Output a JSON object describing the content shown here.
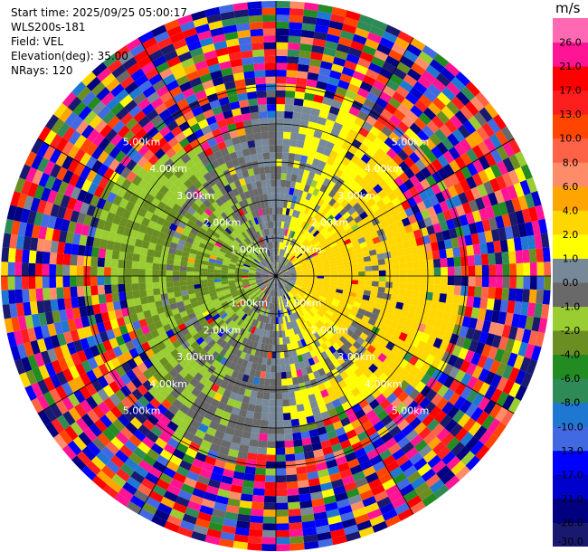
{
  "info": {
    "start_time": "Start time: 2025/09/25 05:00:17",
    "instrument": "WLS200s-181",
    "field": "Field: VEL",
    "elevation": "Elevation(deg): 35.00",
    "nrays": "NRays: 120"
  },
  "colorbar": {
    "unit": "m/s",
    "boundaries": [
      -30.0,
      -26.0,
      -21.0,
      -17.0,
      -13.0,
      -10.0,
      -8.0,
      -6.0,
      -4.0,
      -2.0,
      -1.0,
      0.0,
      1.0,
      2.0,
      4.0,
      6.0,
      8.0,
      10.0,
      13.0,
      17.0,
      21.0,
      26.0
    ],
    "tick_labels": [
      "-30.0",
      "-26.0",
      "-21.0",
      "-17.0",
      "-13.0",
      "-10.0",
      "-8.0",
      "-6.0",
      "-4.0",
      "-2.0",
      "-1.0",
      "0.0",
      "1.0",
      "2.0",
      "4.0",
      "6.0",
      "8.0",
      "10.0",
      "13.0",
      "17.0",
      "21.0",
      "26.0"
    ],
    "colors": [
      "#191970",
      "#000080",
      "#0000cd",
      "#0000ff",
      "#4169e1",
      "#1e78d2",
      "#2e8b57",
      "#228b22",
      "#6b8e23",
      "#9acd32",
      "#696969",
      "#778899",
      "#ffff00",
      "#ffd700",
      "#ffa500",
      "#ff8c69",
      "#ff6347",
      "#ff4500",
      "#ff1e1e",
      "#ff0000",
      "#ff1493",
      "#ff69b4"
    ]
  },
  "chart_data": {
    "type": "heatmap",
    "field": "VEL",
    "units": "m/s",
    "elevation_deg": 35.0,
    "nrays": 120,
    "range_rings_km": [
      1.0,
      2.0,
      3.0,
      4.0,
      5.0
    ],
    "ring_label_text": [
      "1.00km",
      "2.00km",
      "3.00km",
      "4.00km",
      "5.00km"
    ],
    "ring_label_bearings_deg": [
      45,
      135,
      225,
      315
    ],
    "spoke_bearings_deg": [
      0,
      30,
      60,
      90,
      120,
      150,
      180,
      210,
      240,
      270,
      300,
      330
    ],
    "max_range_km": 7.1,
    "pattern": {
      "inner_region": "near-zero velocities (-2 to 4 m/s): yellow positive core to the east, green/gray negative region to the west",
      "outer_region": "noisy velocities spanning -30 to 26 m/s beyond about 4 km"
    }
  }
}
